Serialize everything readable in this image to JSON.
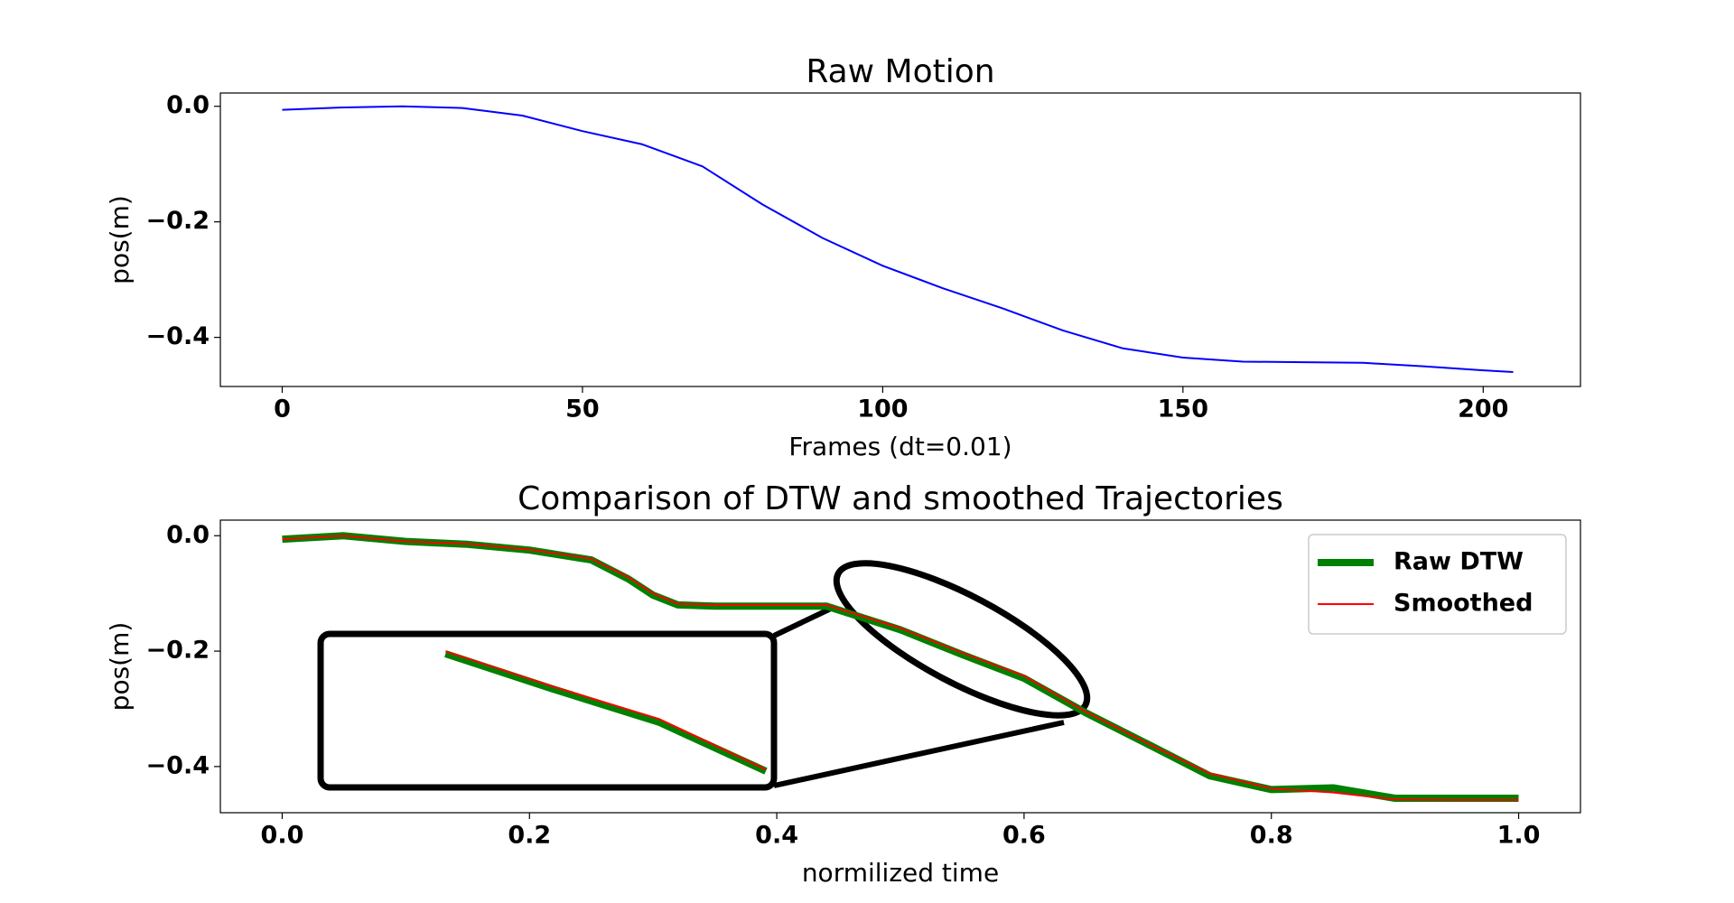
{
  "chart_data": [
    {
      "type": "line",
      "title": "Raw Motion",
      "xlabel": "Frames (dt=0.01)",
      "ylabel": "pos(m)",
      "x": [
        0,
        10,
        20,
        30,
        40,
        50,
        60,
        70,
        80,
        90,
        100,
        110,
        120,
        130,
        140,
        150,
        160,
        170,
        180,
        190,
        200,
        205
      ],
      "series": [
        {
          "color": "#0000ff",
          "values": [
            -0.006,
            -0.002,
            0.0,
            -0.003,
            -0.016,
            -0.043,
            -0.066,
            -0.104,
            -0.17,
            -0.228,
            -0.276,
            -0.315,
            -0.35,
            -0.388,
            -0.419,
            -0.435,
            -0.442,
            -0.443,
            -0.444,
            -0.45,
            -0.457,
            -0.46
          ]
        }
      ],
      "xlim": [
        -10.3,
        216.2
      ],
      "ylim": [
        -0.485,
        0.023
      ],
      "xticks": [
        0,
        50,
        100,
        150,
        200
      ],
      "yticks": [
        {
          "value": 0,
          "label": "0.0"
        },
        {
          "value": -0.2,
          "label": "−0.2"
        },
        {
          "value": -0.4,
          "label": "−0.4"
        }
      ]
    },
    {
      "type": "line",
      "title": "Comparison of DTW and smoothed Trajectories",
      "xlabel": "normilized time",
      "ylabel": "pos(m)",
      "x": [
        0,
        0.05,
        0.1,
        0.15,
        0.2,
        0.25,
        0.28,
        0.3,
        0.32,
        0.35,
        0.4,
        0.44,
        0.5,
        0.55,
        0.6,
        0.65,
        0.7,
        0.75,
        0.8,
        0.85,
        0.9,
        0.95,
        1.0
      ],
      "series": [
        {
          "name": "Raw DTW",
          "color": "#008000",
          "values": [
            -0.006,
            0.0,
            -0.01,
            -0.015,
            -0.025,
            -0.042,
            -0.075,
            -0.103,
            -0.12,
            -0.122,
            -0.122,
            -0.122,
            -0.163,
            -0.206,
            -0.247,
            -0.307,
            -0.361,
            -0.416,
            -0.44,
            -0.437,
            -0.455,
            -0.455,
            -0.455
          ]
        },
        {
          "name": "Smoothed",
          "color": "#ff0000",
          "values": [
            -0.006,
            0.0,
            -0.01,
            -0.014,
            -0.024,
            -0.04,
            -0.072,
            -0.1,
            -0.118,
            -0.12,
            -0.12,
            -0.12,
            -0.16,
            -0.203,
            -0.243,
            -0.305,
            -0.36,
            -0.412,
            -0.438,
            -0.445,
            -0.457,
            -0.458,
            -0.458
          ]
        }
      ],
      "xlim": [
        -0.05,
        1.05
      ],
      "ylim": [
        -0.48,
        0.027
      ],
      "xticks": [
        {
          "value": 0,
          "label": "0.0"
        },
        0.2,
        0.4,
        0.6,
        0.8,
        {
          "value": 1,
          "label": "1.0"
        }
      ],
      "yticks": [
        {
          "value": 0,
          "label": "0.0"
        },
        {
          "value": -0.2,
          "label": "−0.2"
        },
        {
          "value": -0.4,
          "label": "−0.4"
        }
      ],
      "legend": "upper right"
    }
  ]
}
